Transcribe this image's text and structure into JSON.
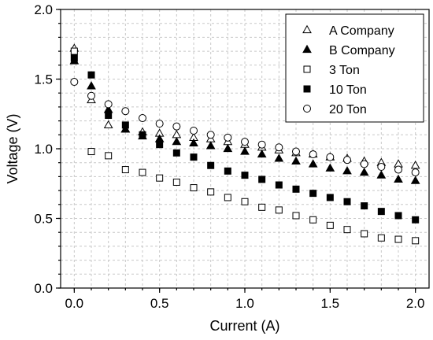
{
  "chart_data": {
    "type": "scatter",
    "xlabel": "Current (A)",
    "ylabel": "Voltage (V)",
    "xlim": [
      -0.08,
      2.08
    ],
    "ylim": [
      0.0,
      2.0
    ],
    "xticks": [
      "0.0",
      "0.5",
      "1.0",
      "1.5",
      "2.0"
    ],
    "yticks": [
      "0.0",
      "0.5",
      "1.0",
      "1.5",
      "2.0"
    ],
    "grid": true,
    "legend_position": "top-right",
    "x": [
      0.0,
      0.1,
      0.2,
      0.3,
      0.4,
      0.5,
      0.6,
      0.7,
      0.8,
      0.9,
      1.0,
      1.1,
      1.2,
      1.3,
      1.4,
      1.5,
      1.6,
      1.7,
      1.8,
      1.9,
      2.0
    ],
    "series": [
      {
        "name": "A Company",
        "marker": "triangle-open",
        "values": [
          1.72,
          1.35,
          1.17,
          1.14,
          1.12,
          1.11,
          1.1,
          1.08,
          1.07,
          1.05,
          1.03,
          1.01,
          0.99,
          0.97,
          0.96,
          0.94,
          0.93,
          0.91,
          0.9,
          0.89,
          0.88
        ]
      },
      {
        "name": "B Company",
        "marker": "triangle-filled",
        "values": [
          1.63,
          1.45,
          1.28,
          1.14,
          1.09,
          1.07,
          1.05,
          1.04,
          1.02,
          1.0,
          0.98,
          0.96,
          0.93,
          0.91,
          0.89,
          0.86,
          0.84,
          0.83,
          0.81,
          0.78,
          0.77
        ]
      },
      {
        "name": "3 Ton",
        "marker": "square-open",
        "values": [
          1.7,
          0.98,
          0.95,
          0.85,
          0.83,
          0.79,
          0.76,
          0.72,
          0.69,
          0.65,
          0.62,
          0.58,
          0.56,
          0.52,
          0.49,
          0.45,
          0.42,
          0.39,
          0.36,
          0.35,
          0.34
        ]
      },
      {
        "name": "10 Ton",
        "marker": "square-filled",
        "values": [
          1.65,
          1.53,
          1.24,
          1.17,
          1.1,
          1.03,
          0.97,
          0.94,
          0.88,
          0.84,
          0.81,
          0.78,
          0.74,
          0.71,
          0.68,
          0.65,
          0.62,
          0.59,
          0.55,
          0.52,
          0.49
        ]
      },
      {
        "name": "20 Ton",
        "marker": "circle-open",
        "values": [
          1.48,
          1.38,
          1.32,
          1.27,
          1.22,
          1.18,
          1.16,
          1.13,
          1.1,
          1.08,
          1.05,
          1.03,
          1.01,
          0.98,
          0.96,
          0.94,
          0.92,
          0.89,
          0.87,
          0.85,
          0.83
        ]
      }
    ]
  }
}
